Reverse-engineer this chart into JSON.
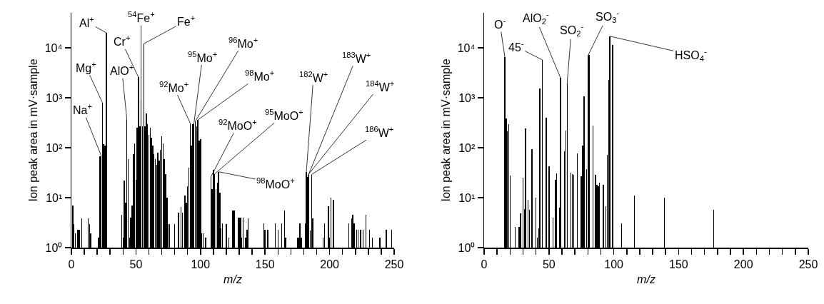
{
  "chart_data": [
    {
      "type": "bar",
      "xlabel": "m/z",
      "ylabel": "Ion peak area in mV·sample",
      "color": "#000000",
      "log": true,
      "grid": false,
      "x": [
        1,
        2,
        3,
        5,
        6,
        8,
        13,
        14,
        15,
        21,
        22,
        23,
        24,
        25,
        26,
        27,
        39,
        40,
        41,
        42,
        43,
        44,
        45,
        46,
        47,
        48,
        49,
        50,
        51,
        52,
        53,
        54,
        55,
        56,
        57,
        58,
        59,
        60,
        61,
        62,
        63,
        64,
        65,
        66,
        67,
        68,
        69,
        70,
        71,
        72,
        73,
        74,
        75,
        76,
        80,
        83,
        85,
        86,
        88,
        89,
        90,
        91,
        92,
        93,
        94,
        95,
        96,
        97,
        98,
        99,
        100,
        101,
        102,
        104,
        108,
        109,
        110,
        111,
        112,
        113,
        114,
        115,
        116,
        117,
        120,
        122,
        125,
        126,
        129,
        130,
        131,
        132,
        133,
        135,
        136,
        137,
        149,
        150,
        152,
        158,
        160,
        163,
        165,
        166,
        175,
        176,
        177,
        178,
        181,
        182,
        183,
        184,
        185,
        186,
        187,
        195,
        196,
        199,
        200,
        201,
        203,
        215,
        217,
        218,
        219,
        221,
        222,
        224,
        226,
        228,
        231,
        233,
        239,
        244,
        248
      ],
      "values": [
        7,
        3,
        1.9,
        2.3,
        2.3,
        3.9,
        3.9,
        3,
        1.9,
        1.6,
        68,
        70,
        800,
        118,
        110,
        20000,
        4.6,
        1.6,
        22,
        8,
        360,
        60,
        1.6,
        4,
        7,
        75,
        120,
        23,
        250,
        2550,
        270,
        900,
        270,
        12000,
        270,
        480,
        300,
        180,
        250,
        160,
        110,
        75,
        60,
        45,
        80,
        55,
        90,
        170,
        120,
        60,
        30,
        10,
        3,
        3,
        3,
        5,
        6.5,
        5,
        11,
        8,
        17,
        40,
        310,
        110,
        300,
        320,
        340,
        270,
        360,
        140,
        150,
        1.9,
        1.9,
        1.6,
        26,
        15,
        36,
        30,
        15,
        20,
        33,
        12.6,
        2.4,
        3.1,
        3,
        1.6,
        5.5,
        5.5,
        4,
        4,
        4,
        1.6,
        4,
        1.6,
        2.3,
        3.9,
        3.1,
        2.3,
        2.3,
        3.1,
        2.3,
        3.1,
        5.5,
        1.6,
        1.6,
        1.6,
        3.1,
        1.6,
        3.1,
        33,
        26,
        30,
        2.2,
        29,
        3.9,
        1.6,
        3.1,
        6.8,
        1.6,
        10,
        9,
        3.1,
        3.9,
        4.6,
        3.1,
        2.3,
        2.3,
        2.3,
        2.3,
        4.6,
        2.3,
        1.6,
        1.6,
        2.3,
        2.3
      ],
      "xlim": [
        0,
        250
      ],
      "xticks": [
        0,
        {
          "value": 10,
          "label": null
        },
        {
          "value": 20,
          "label": null
        },
        {
          "value": 30,
          "label": null
        },
        {
          "value": 40,
          "label": null
        },
        50,
        {
          "value": 60,
          "label": null
        },
        {
          "value": 70,
          "label": null
        },
        {
          "value": 80,
          "label": null
        },
        {
          "value": 90,
          "label": null
        },
        100,
        {
          "value": 110,
          "label": null
        },
        {
          "value": 120,
          "label": null
        },
        {
          "value": 130,
          "label": null
        },
        {
          "value": 140,
          "label": null
        },
        150,
        {
          "value": 160,
          "label": null
        },
        {
          "value": 170,
          "label": null
        },
        {
          "value": 180,
          "label": null
        },
        {
          "value": 190,
          "label": null
        },
        200,
        {
          "value": 210,
          "label": null
        },
        {
          "value": 220,
          "label": null
        },
        {
          "value": 230,
          "label": null
        },
        {
          "value": 240,
          "label": null
        },
        250
      ],
      "ylim": [
        1,
        50000
      ],
      "yticks": [
        {
          "value": 1,
          "label": "10⁰"
        },
        {
          "value": 10,
          "label": "10¹"
        },
        {
          "value": 100,
          "label": "10²"
        },
        {
          "value": 1000,
          "label": "10³"
        },
        {
          "value": 10000,
          "label": "10⁴"
        }
      ],
      "annotations": [
        {
          "text": "Na$^{+}$",
          "x": 23,
          "y": 70
        },
        {
          "text": "Mg$^{+}$",
          "x": 24,
          "y": 800
        },
        {
          "text": "Al$^{+}$",
          "x": 27,
          "y": 20000
        },
        {
          "text": "AlO$^{+}$",
          "x": 43,
          "y": 360
        },
        {
          "text": "Cr$^{+}$",
          "x": 52,
          "y": 2550
        },
        {
          "text": "$^{54}$Fe$^{+}$",
          "x": 54,
          "y": 900
        },
        {
          "text": "Fe$^{+}$",
          "x": 56,
          "y": 12000
        },
        {
          "text": "$^{92}$Mo$^{+}$",
          "x": 92,
          "y": 310
        },
        {
          "text": "$^{95}$Mo$^{+}$",
          "x": 95,
          "y": 320
        },
        {
          "text": "$^{96}$Mo$^{+}$",
          "x": 96,
          "y": 340
        },
        {
          "text": "$^{98}$Mo$^{+}$",
          "x": 98,
          "y": 360
        },
        {
          "text": "$^{92}$MoO$^{+}$",
          "x": 108,
          "y": 26
        },
        {
          "text": "$^{95}$MoO$^{+}$",
          "x": 111,
          "y": 30
        },
        {
          "text": "$^{98}$MoO$^{+}$",
          "x": 114,
          "y": 33
        },
        {
          "text": "$^{182}$W$^{+}$",
          "x": 182,
          "y": 33
        },
        {
          "text": "$^{183}$W$^{+}$",
          "x": 183,
          "y": 26
        },
        {
          "text": "$^{184}$W$^{+}$",
          "x": 184,
          "y": 30
        },
        {
          "text": "$^{186}$W$^{+}$",
          "x": 186,
          "y": 29
        }
      ]
    },
    {
      "type": "bar",
      "xlabel": "m/z",
      "ylabel": "Ion peak area in mV·sample",
      "color": "#000000",
      "log": true,
      "grid": false,
      "x": [
        16,
        17,
        18,
        19,
        20,
        24,
        27,
        28,
        30,
        31,
        32,
        34,
        35,
        37,
        40,
        41,
        42,
        43,
        45,
        48,
        50,
        53,
        55,
        56,
        58,
        59,
        62,
        63,
        64,
        67,
        68,
        69,
        72,
        75,
        76,
        77,
        79,
        80,
        81,
        84,
        86,
        87,
        88,
        89,
        92,
        94,
        95,
        96,
        97,
        99,
        106,
        116,
        139,
        177
      ],
      "values": [
        6500,
        390,
        210,
        300,
        28,
        2.6,
        2.6,
        4.9,
        25,
        6,
        245,
        9,
        5.8,
        95,
        10,
        1.6,
        2.4,
        1550,
        5700,
        400,
        42,
        4,
        23,
        31,
        6.3,
        2470,
        85,
        220,
        1900,
        32,
        30,
        29,
        78,
        27,
        110,
        1070,
        37,
        6900,
        7100,
        280,
        29,
        18,
        17,
        20,
        18,
        6.8,
        71,
        2300,
        17000,
        11500,
        3.1,
        11,
        10,
        5.7
      ],
      "xlim": [
        0,
        250
      ],
      "xticks": [
        0,
        {
          "value": 10,
          "label": null
        },
        {
          "value": 20,
          "label": null
        },
        {
          "value": 30,
          "label": null
        },
        {
          "value": 40,
          "label": null
        },
        50,
        {
          "value": 60,
          "label": null
        },
        {
          "value": 70,
          "label": null
        },
        {
          "value": 80,
          "label": null
        },
        {
          "value": 90,
          "label": null
        },
        100,
        {
          "value": 110,
          "label": null
        },
        {
          "value": 120,
          "label": null
        },
        {
          "value": 130,
          "label": null
        },
        {
          "value": 140,
          "label": null
        },
        150,
        {
          "value": 160,
          "label": null
        },
        {
          "value": 170,
          "label": null
        },
        {
          "value": 180,
          "label": null
        },
        {
          "value": 190,
          "label": null
        },
        200,
        {
          "value": 210,
          "label": null
        },
        {
          "value": 220,
          "label": null
        },
        {
          "value": 230,
          "label": null
        },
        {
          "value": 240,
          "label": null
        },
        250
      ],
      "ylim": [
        1,
        50000
      ],
      "yticks": [
        {
          "value": 1,
          "label": "10⁰"
        },
        {
          "value": 10,
          "label": "10¹"
        },
        {
          "value": 100,
          "label": "10²"
        },
        {
          "value": 1000,
          "label": "10³"
        },
        {
          "value": 10000,
          "label": "10⁴"
        }
      ],
      "annotations": [
        {
          "text": "O$^{-}$",
          "x": 16,
          "y": 6500
        },
        {
          "text": "45$^{-}$",
          "x": 45,
          "y": 5700
        },
        {
          "text": "AlO$_{2}$$^{-}$",
          "x": 59,
          "y": 2470
        },
        {
          "text": "SO$_{2}$$^{-}$",
          "x": 64,
          "y": 1900
        },
        {
          "text": "SO$_{3}$$^{-}$",
          "x": 80,
          "y": 6900
        },
        {
          "text": "HSO$_{4}$$^{-}$",
          "x": 97,
          "y": 17000
        }
      ]
    }
  ]
}
